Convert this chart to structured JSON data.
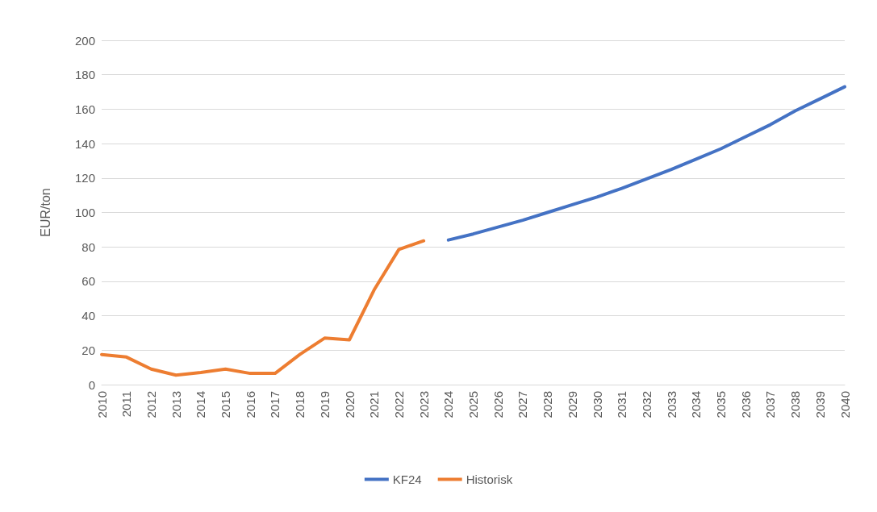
{
  "chart_data": {
    "type": "line",
    "ylabel": "EUR/ton",
    "categories": [
      "2010",
      "2011",
      "2012",
      "2013",
      "2014",
      "2015",
      "2016",
      "2017",
      "2018",
      "2019",
      "2020",
      "2021",
      "2022",
      "2023",
      "2024",
      "2025",
      "2026",
      "2027",
      "2028",
      "2029",
      "2030",
      "2031",
      "2032",
      "2033",
      "2034",
      "2035",
      "2036",
      "2037",
      "2038",
      "2039",
      "2040"
    ],
    "series": [
      {
        "name": "KF24",
        "color": "#4472c4",
        "values": [
          null,
          null,
          null,
          null,
          null,
          null,
          null,
          null,
          null,
          null,
          null,
          null,
          null,
          null,
          84,
          87.5,
          91.5,
          95.5,
          100,
          104.5,
          109,
          114,
          119.5,
          125,
          131,
          137,
          144,
          151,
          159,
          166,
          173
        ]
      },
      {
        "name": "Historisk",
        "color": "#ed7d31",
        "values": [
          17.5,
          16,
          9,
          5.5,
          7,
          9,
          6.5,
          6.5,
          17.5,
          27,
          26,
          55,
          78.5,
          83.5,
          null,
          null,
          null,
          null,
          null,
          null,
          null,
          null,
          null,
          null,
          null,
          null,
          null,
          null,
          null,
          null,
          null
        ]
      }
    ],
    "ylim": [
      0,
      200
    ],
    "yticks": [
      0,
      20,
      40,
      60,
      80,
      100,
      120,
      140,
      160,
      180,
      200
    ],
    "grid": "y",
    "legend": "bottom",
    "marker": "none",
    "line_style": "solid"
  }
}
